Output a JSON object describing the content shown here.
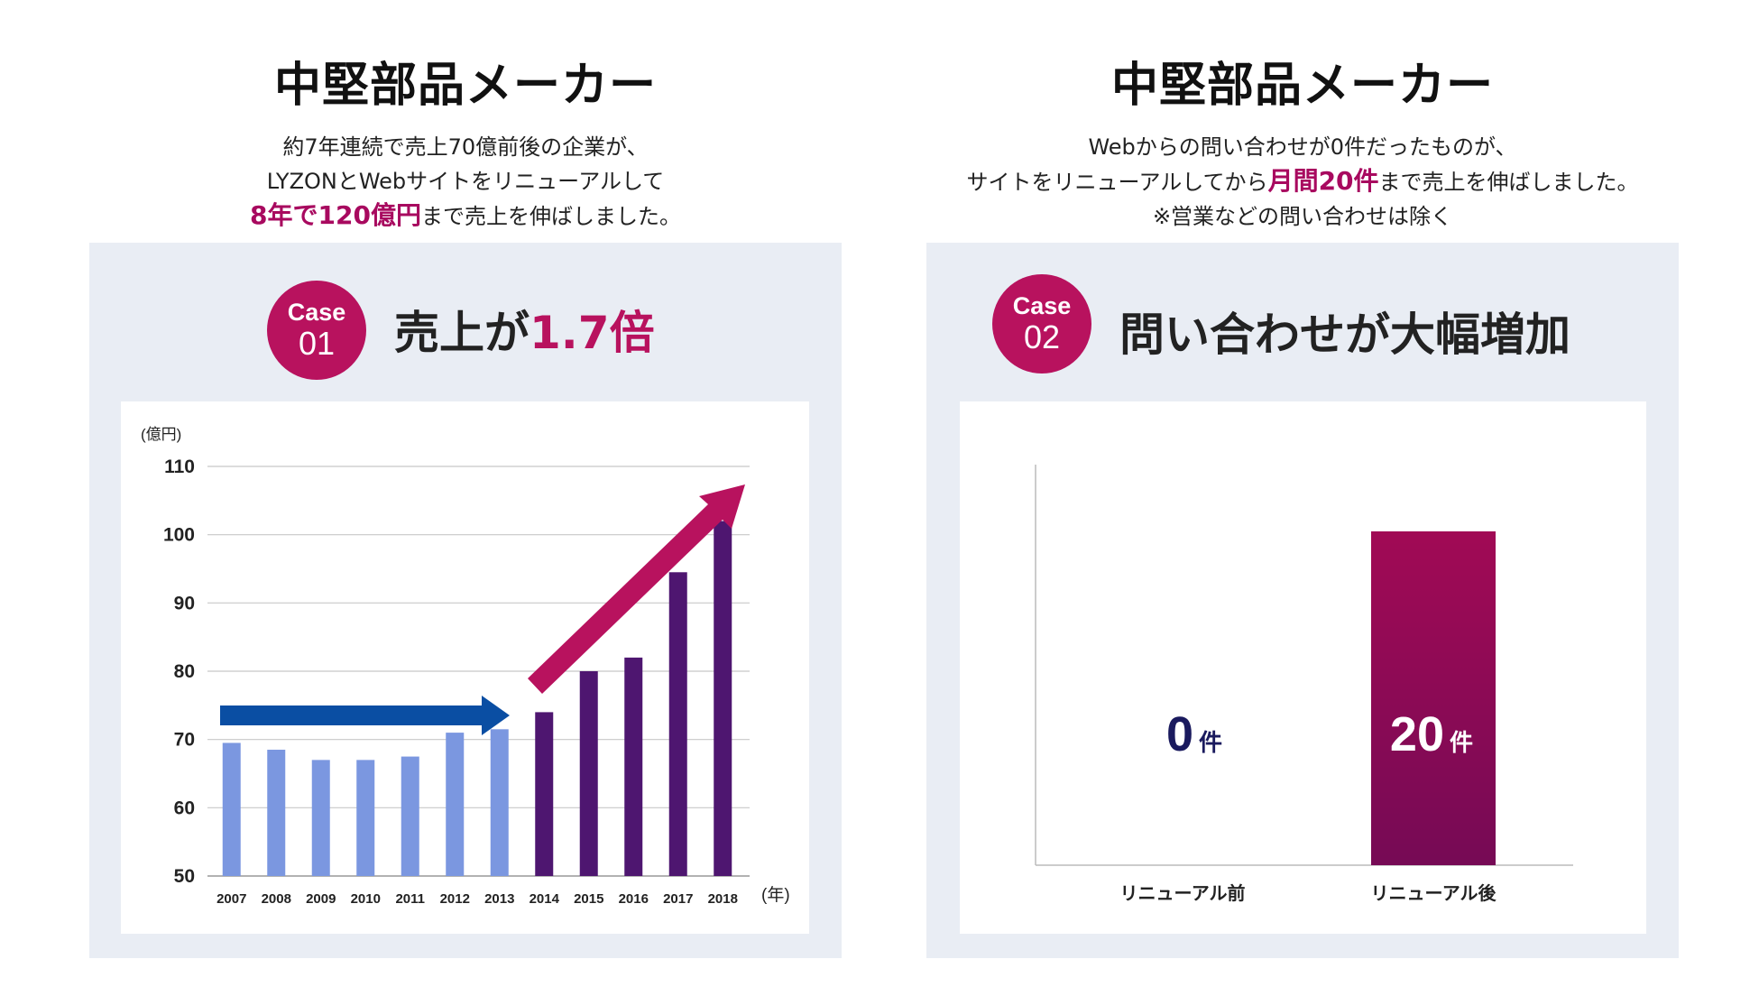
{
  "left": {
    "heading": "中堅部品メーカー",
    "desc_line1": "約7年連続で売上70億前後の企業が、",
    "desc_line2": "LYZONとWebサイトをリニューアルして",
    "desc_line3_highlight": "8年で120億円",
    "desc_line3_rest": "まで売上を伸ばしました。",
    "badge_top": "Case",
    "badge_num": "01",
    "case_title_prefix": "売上が",
    "case_title_highlight": "1.7倍"
  },
  "right": {
    "heading": "中堅部品メーカー",
    "desc_line1": "Webからの問い合わせが0件だったものが、",
    "desc_line2_pre": "サイトをリニューアルしてから",
    "desc_line2_highlight": "月間20件",
    "desc_line2_post": "まで売上を伸ばしました。",
    "desc_line3": "※営業などの問い合わせは除く",
    "badge_top": "Case",
    "badge_num": "02",
    "case_title": "問い合わせが大幅増加"
  },
  "colors": {
    "accent": "#b8125e",
    "before_bar": "#7b97e0",
    "after_bar": "#4e1670",
    "blue_arrow": "#0a4ea3",
    "panel_bg": "#e9edf4"
  },
  "chart_data": [
    {
      "type": "bar",
      "ylabel": "(億円)",
      "xlabel": "(年)",
      "ylim": [
        50,
        110
      ],
      "yticks": [
        50,
        60,
        70,
        80,
        90,
        100,
        110
      ],
      "grid": true,
      "categories": [
        "2007",
        "2008",
        "2009",
        "2010",
        "2011",
        "2012",
        "2013",
        "2014",
        "2015",
        "2016",
        "2017",
        "2018"
      ],
      "values": [
        69.5,
        68.5,
        67,
        67,
        67.5,
        71,
        71.5,
        74,
        80,
        82,
        94.5,
        102
      ],
      "highlight_from_index": 7
    },
    {
      "type": "bar",
      "categories": [
        "リニューアル前",
        "リニューアル後"
      ],
      "values": [
        0,
        20
      ],
      "value_labels": [
        "0",
        "20"
      ],
      "unit": "件",
      "ylim": [
        0,
        24
      ]
    }
  ]
}
